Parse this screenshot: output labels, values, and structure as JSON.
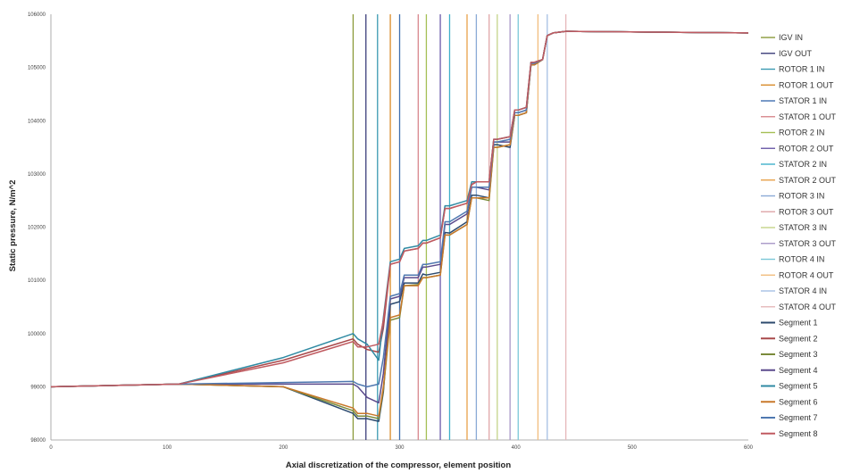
{
  "chart_data": {
    "type": "line",
    "xlabel": "Axial discretization of the compressor, element position",
    "ylabel": "Static pressure, N/m^2",
    "xlim": [
      0,
      600
    ],
    "ylim": [
      98000,
      106000
    ],
    "x_ticks": [
      "0",
      "100",
      "200",
      "300",
      "400",
      "500",
      "600"
    ],
    "y_ticks": [
      "98000",
      "99000",
      "100000",
      "101000",
      "102000",
      "103000",
      "104000",
      "105000",
      "106000"
    ],
    "grid": false,
    "legend_position": "right",
    "station_lines": [
      {
        "name": "IGV IN",
        "x": 260,
        "color": "#8a9a3a"
      },
      {
        "name": "IGV OUT",
        "x": 271,
        "color": "#3d3f7a"
      },
      {
        "name": "ROTOR 1 IN",
        "x": 281,
        "color": "#3b9ab2"
      },
      {
        "name": "ROTOR 1 OUT",
        "x": 292,
        "color": "#d98c2b"
      },
      {
        "name": "STATOR 1 IN",
        "x": 300,
        "color": "#3f6fb0"
      },
      {
        "name": "STATOR 1 OUT",
        "x": 316,
        "color": "#d9888e"
      },
      {
        "name": "ROTOR 2 IN",
        "x": 323,
        "color": "#a5bf55"
      },
      {
        "name": "ROTOR 2 OUT",
        "x": 335,
        "color": "#6a5aa8"
      },
      {
        "name": "STATOR 2 IN",
        "x": 343,
        "color": "#3fb0c9"
      },
      {
        "name": "STATOR 2 OUT",
        "x": 358,
        "color": "#e8a14a"
      },
      {
        "name": "ROTOR 3 IN",
        "x": 366,
        "color": "#8aaad6"
      },
      {
        "name": "ROTOR 3 OUT",
        "x": 377,
        "color": "#dfa6a8"
      },
      {
        "name": "STATOR 3 IN",
        "x": 384,
        "color": "#c5d489"
      },
      {
        "name": "STATOR 3 OUT",
        "x": 395,
        "color": "#a898c8"
      },
      {
        "name": "ROTOR 4 IN",
        "x": 402,
        "color": "#7cc8d8"
      },
      {
        "name": "ROTOR 4 OUT",
        "x": 419,
        "color": "#f2bd7d"
      },
      {
        "name": "STATOR 4 IN",
        "x": 427,
        "color": "#a6c0e3"
      },
      {
        "name": "STATOR 4 OUT",
        "x": 443,
        "color": "#e6b8ba"
      }
    ],
    "series": [
      {
        "name": "Segment 1",
        "color": "#2c4a6e",
        "x": [
          0,
          110,
          200,
          260,
          264,
          272,
          282,
          286,
          292,
          300,
          304,
          316,
          320,
          323,
          335,
          339,
          343,
          358,
          362,
          366,
          377,
          381,
          384,
          395,
          399,
          402,
          409,
          413,
          416,
          423,
          427,
          432,
          443,
          600
        ],
        "y": [
          99000,
          99050,
          99000,
          98500,
          98400,
          98400,
          98350,
          98900,
          100550,
          100600,
          100950,
          100950,
          101120,
          101100,
          101150,
          101900,
          101890,
          102100,
          102600,
          102600,
          102550,
          103550,
          103550,
          103500,
          104100,
          104100,
          104150,
          105050,
          105050,
          105150,
          105600,
          105650,
          105680,
          105650
        ]
      },
      {
        "name": "Segment 2",
        "color": "#a8484a",
        "x": [
          0,
          110,
          200,
          260,
          264,
          272,
          282,
          286,
          292,
          300,
          304,
          316,
          320,
          323,
          335,
          339,
          343,
          358,
          362,
          366,
          377,
          381,
          384,
          395,
          399,
          402,
          409,
          413,
          416,
          423,
          427,
          432,
          443,
          600
        ],
        "y": [
          99000,
          99050,
          99500,
          99900,
          99800,
          99700,
          99650,
          100100,
          101300,
          101350,
          101550,
          101600,
          101700,
          101700,
          101800,
          102350,
          102350,
          102450,
          102800,
          102850,
          102850,
          103650,
          103650,
          103700,
          104200,
          104200,
          104250,
          105100,
          105100,
          105150,
          105600,
          105650,
          105680,
          105650
        ]
      },
      {
        "name": "Segment 3",
        "color": "#7a8a3a",
        "x": [
          0,
          110,
          200,
          260,
          264,
          272,
          282,
          286,
          292,
          300,
          304,
          316,
          320,
          323,
          335,
          339,
          343,
          358,
          362,
          366,
          377,
          381,
          384,
          395,
          399,
          402,
          409,
          413,
          416,
          423,
          427,
          432,
          443,
          600
        ],
        "y": [
          99000,
          99050,
          99000,
          98550,
          98450,
          98450,
          98400,
          98950,
          100250,
          100300,
          100900,
          100920,
          101050,
          101050,
          101100,
          101850,
          101850,
          102050,
          102550,
          102550,
          102500,
          103500,
          103500,
          103550,
          104100,
          104100,
          104150,
          105050,
          105050,
          105150,
          105600,
          105650,
          105680,
          105650
        ]
      },
      {
        "name": "Segment 4",
        "color": "#5b4a8c",
        "x": [
          0,
          110,
          200,
          260,
          264,
          272,
          282,
          286,
          292,
          300,
          304,
          316,
          320,
          323,
          335,
          339,
          343,
          358,
          362,
          366,
          377,
          381,
          384,
          395,
          399,
          402,
          409,
          413,
          416,
          423,
          427,
          432,
          443,
          600
        ],
        "y": [
          99000,
          99050,
          99050,
          99050,
          99000,
          98800,
          98700,
          99250,
          100650,
          100700,
          101050,
          101050,
          101250,
          101250,
          101300,
          102050,
          102050,
          102250,
          102750,
          102750,
          102700,
          103600,
          103600,
          103600,
          104150,
          104150,
          104200,
          105080,
          105080,
          105150,
          105600,
          105650,
          105680,
          105650
        ]
      },
      {
        "name": "Segment 5",
        "color": "#2f8aa3",
        "x": [
          0,
          110,
          200,
          260,
          264,
          272,
          282,
          286,
          292,
          300,
          304,
          316,
          320,
          323,
          335,
          339,
          343,
          358,
          362,
          366,
          377,
          381,
          384,
          395,
          399,
          402,
          409,
          413,
          416,
          423,
          427,
          432,
          443,
          600
        ],
        "y": [
          99000,
          99050,
          99550,
          100000,
          99900,
          99800,
          99500,
          100300,
          101350,
          101400,
          101600,
          101650,
          101750,
          101750,
          101850,
          102400,
          102400,
          102500,
          102850,
          102850,
          102850,
          103650,
          103650,
          103700,
          104200,
          104200,
          104250,
          105100,
          105100,
          105150,
          105600,
          105650,
          105680,
          105650
        ]
      },
      {
        "name": "Segment 6",
        "color": "#c8782a",
        "x": [
          0,
          110,
          200,
          260,
          264,
          272,
          282,
          286,
          292,
          300,
          304,
          316,
          320,
          323,
          335,
          339,
          343,
          358,
          362,
          366,
          377,
          381,
          384,
          395,
          399,
          402,
          409,
          413,
          416,
          423,
          427,
          432,
          443,
          600
        ],
        "y": [
          99000,
          99050,
          99000,
          98600,
          98500,
          98500,
          98450,
          99000,
          100300,
          100350,
          100900,
          100900,
          101050,
          101050,
          101100,
          101850,
          101850,
          102050,
          102550,
          102550,
          102550,
          103500,
          103500,
          103550,
          104100,
          104100,
          104150,
          105050,
          105050,
          105150,
          105600,
          105650,
          105680,
          105650
        ]
      },
      {
        "name": "Segment 7",
        "color": "#4f78b0",
        "x": [
          0,
          110,
          200,
          260,
          264,
          272,
          282,
          286,
          292,
          300,
          304,
          316,
          320,
          323,
          335,
          339,
          343,
          358,
          362,
          366,
          377,
          381,
          384,
          395,
          399,
          402,
          409,
          413,
          416,
          423,
          427,
          432,
          443,
          600
        ],
        "y": [
          99000,
          99050,
          99080,
          99100,
          99050,
          99000,
          99050,
          99550,
          100700,
          100750,
          101100,
          101100,
          101300,
          101300,
          101350,
          102100,
          102100,
          102300,
          102750,
          102750,
          102750,
          103600,
          103600,
          103650,
          104150,
          104150,
          104200,
          105080,
          105080,
          105150,
          105600,
          105650,
          105680,
          105650
        ]
      },
      {
        "name": "Segment 8",
        "color": "#c05a60",
        "x": [
          0,
          110,
          200,
          260,
          264,
          272,
          282,
          286,
          292,
          300,
          304,
          316,
          320,
          323,
          335,
          339,
          343,
          358,
          362,
          366,
          377,
          381,
          384,
          395,
          399,
          402,
          409,
          413,
          416,
          423,
          427,
          432,
          443,
          600
        ],
        "y": [
          99000,
          99050,
          99450,
          99850,
          99750,
          99750,
          99800,
          100250,
          101300,
          101350,
          101550,
          101600,
          101700,
          101700,
          101800,
          102350,
          102350,
          102450,
          102800,
          102850,
          102850,
          103650,
          103650,
          103700,
          104200,
          104200,
          104250,
          105100,
          105100,
          105150,
          105600,
          105650,
          105680,
          105650
        ]
      }
    ]
  }
}
